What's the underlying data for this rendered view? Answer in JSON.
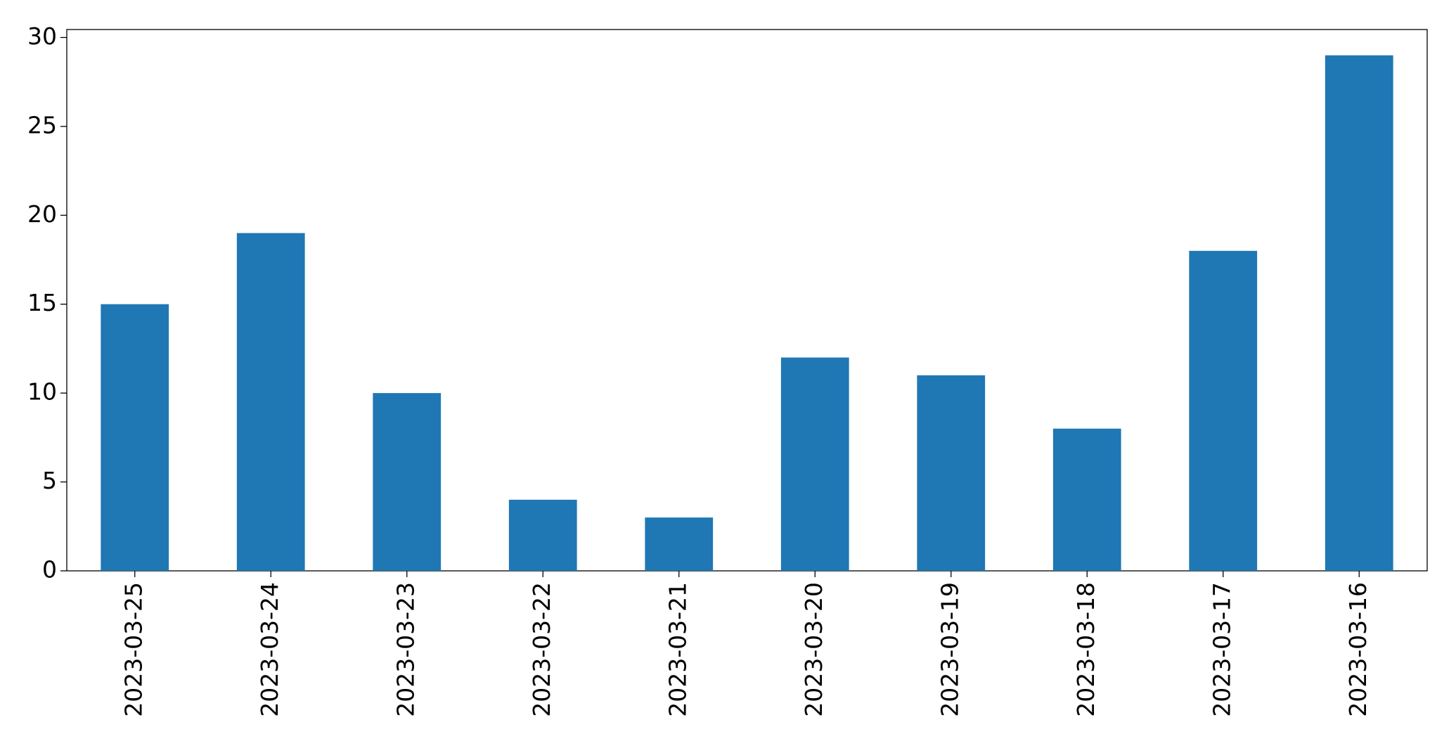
{
  "chart_data": {
    "type": "bar",
    "categories": [
      "2023-03-25",
      "2023-03-24",
      "2023-03-23",
      "2023-03-22",
      "2023-03-21",
      "2023-03-20",
      "2023-03-19",
      "2023-03-18",
      "2023-03-17",
      "2023-03-16"
    ],
    "values": [
      15,
      19,
      10,
      4,
      3,
      12,
      11,
      8,
      18,
      29
    ],
    "color": "#1f77b4",
    "ylim": [
      0,
      30.45
    ],
    "yticks": [
      0,
      5,
      10,
      15,
      20,
      25,
      30
    ],
    "grid": false
  }
}
